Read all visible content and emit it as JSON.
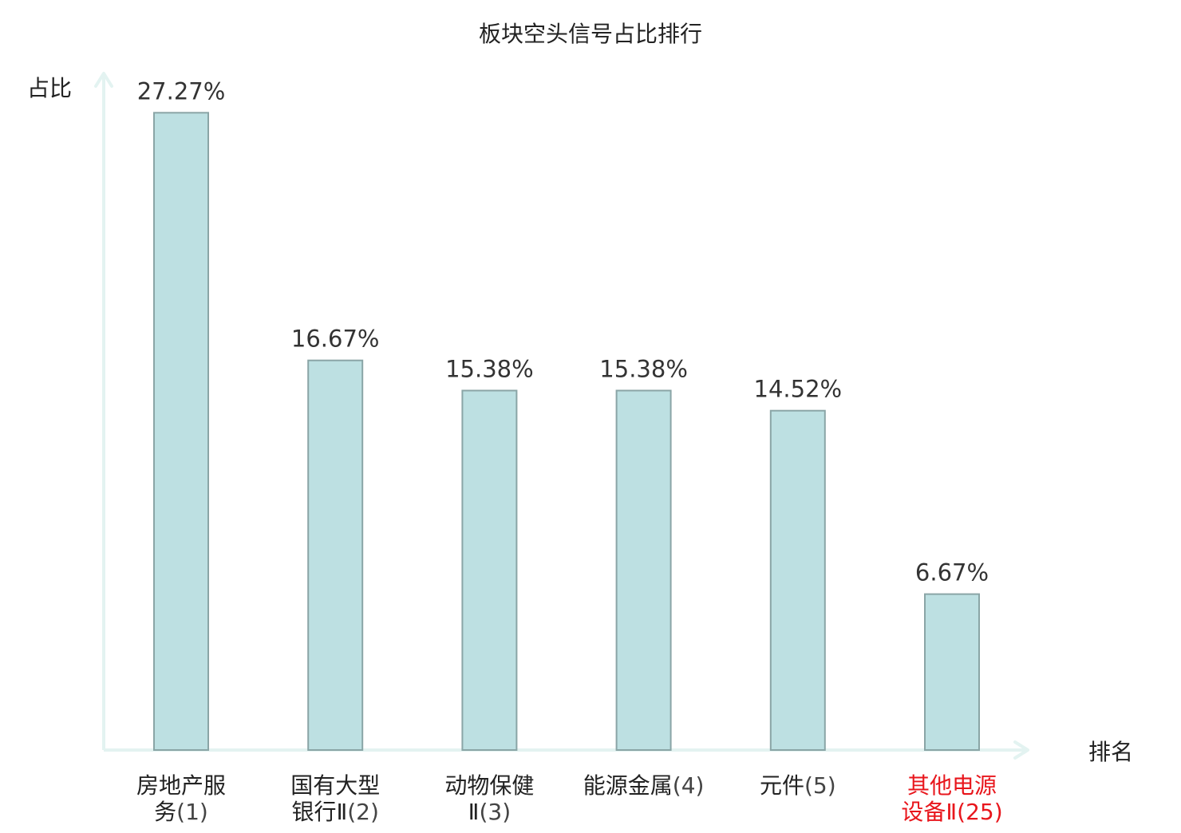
{
  "chart_data": {
    "type": "bar",
    "title": "板块空头信号占比排行",
    "xlabel": "排名",
    "ylabel": "占比",
    "ylim": [
      0,
      31
    ],
    "grid": false,
    "categories": [
      {
        "lines": [
          [
            "房地产服",
            ""
          ],
          [
            "务",
            "(1)"
          ]
        ],
        "highlight": false
      },
      {
        "lines": [
          [
            "国有大型",
            ""
          ],
          [
            "银行Ⅱ",
            "(2)"
          ]
        ],
        "highlight": false
      },
      {
        "lines": [
          [
            "动物保健",
            ""
          ],
          [
            "Ⅱ",
            "(3)"
          ]
        ],
        "highlight": false
      },
      {
        "lines": [
          [
            "能源金属",
            "(4)"
          ]
        ],
        "highlight": false
      },
      {
        "lines": [
          [
            "元件",
            "(5)"
          ]
        ],
        "highlight": false
      },
      {
        "lines": [
          [
            "其他电源",
            ""
          ],
          [
            "设备Ⅱ",
            "(25)"
          ]
        ],
        "highlight": true
      }
    ],
    "values": [
      27.27,
      16.67,
      15.38,
      15.38,
      14.52,
      6.67
    ],
    "value_labels": [
      "27.27%",
      "16.67%",
      "15.38%",
      "15.38%",
      "14.52%",
      "6.67%"
    ]
  },
  "colors": {
    "bar_fill": "#bde0e2",
    "bar_stroke": "#8aa5a6",
    "axis": "#e3f3f1",
    "highlight_text": "#e8161c"
  }
}
